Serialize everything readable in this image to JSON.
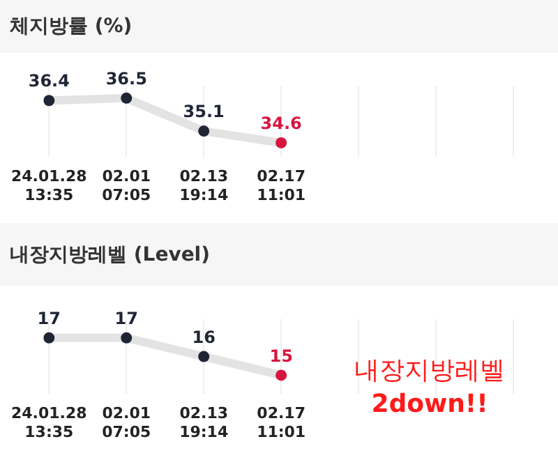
{
  "chart_data": [
    {
      "type": "line",
      "title": "체지방률 (%)",
      "categories": [
        "24.01.28\n13:35",
        "02.01\n07:05",
        "02.13\n19:14",
        "02.17\n11:01",
        null,
        null,
        null
      ],
      "series": [
        {
          "color": "#e3e3e3",
          "colors": [
            "#1f2535",
            "#1f2535",
            "#1f2535",
            "#d6163f",
            "#1f2535",
            "#1f2535",
            "#1f2535"
          ],
          "values": [
            36.4,
            36.5,
            35.1,
            34.6,
            null,
            null,
            null
          ]
        }
      ],
      "data_labels": true,
      "grid": "x",
      "tick_labels": "x",
      "marker": "circle",
      "legend": false
    },
    {
      "type": "line",
      "title": "내장지방레벨 (Level)",
      "categories": [
        "24.01.28\n13:35",
        "02.01\n07:05",
        "02.13\n19:14",
        "02.17\n11:01",
        null,
        null,
        null
      ],
      "series": [
        {
          "color": "#e3e3e3",
          "colors": [
            "#1f2535",
            "#1f2535",
            "#1f2535",
            "#d6163f",
            "#1f2535",
            "#1f2535",
            "#1f2535"
          ],
          "values": [
            17,
            17,
            16,
            15,
            null,
            null,
            null
          ]
        }
      ],
      "data_labels": true,
      "grid": "x",
      "tick_labels": "x",
      "marker": "circle",
      "legend": false,
      "annotations": [
        "내장지방레벨\n2down!!"
      ]
    }
  ]
}
